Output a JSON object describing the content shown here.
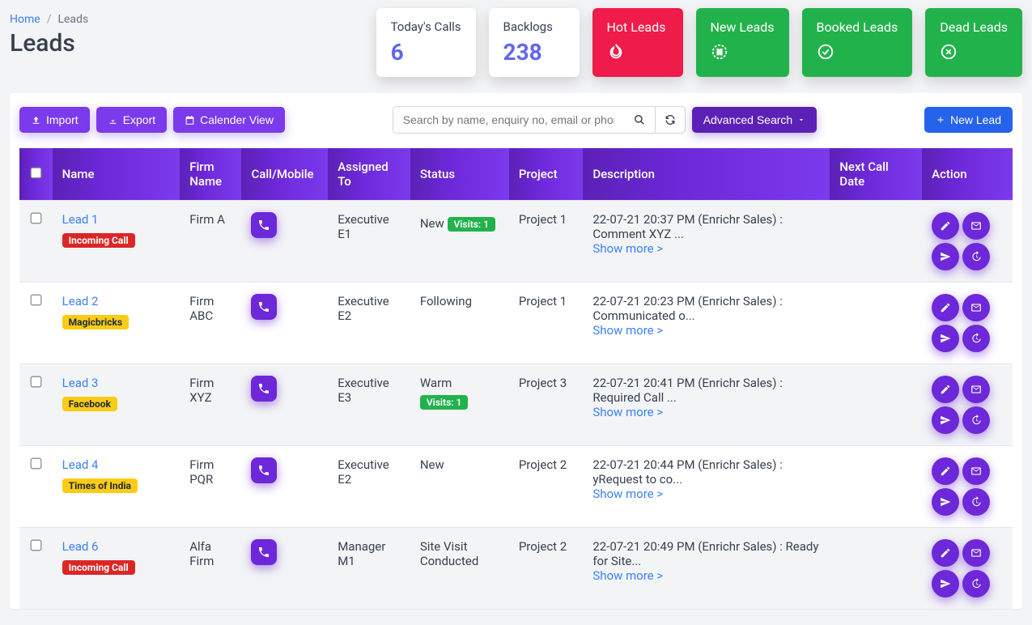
{
  "breadcrumb": {
    "home": "Home",
    "current": "Leads"
  },
  "page_title": "Leads",
  "stats": {
    "todays_calls": {
      "label": "Today's Calls",
      "value": "6"
    },
    "backlogs": {
      "label": "Backlogs",
      "value": "238"
    },
    "hot": {
      "label": "Hot Leads",
      "color": "#ef1b4a",
      "icon": "flame"
    },
    "new": {
      "label": "New Leads",
      "color": "#22b24c",
      "icon": "badge-n"
    },
    "booked": {
      "label": "Booked Leads",
      "color": "#22b24c",
      "icon": "check-circle"
    },
    "dead": {
      "label": "Dead Leads",
      "color": "#22b24c",
      "icon": "x-circle"
    }
  },
  "toolbar": {
    "import": "Import",
    "export": "Export",
    "calendar": "Calender View",
    "search_placeholder": "Search by name, enquiry no, email or phone",
    "advanced_search": "Advanced Search",
    "new_lead": "New Lead"
  },
  "columns": {
    "name": "Name",
    "firm": "Firm Name",
    "call": "Call/Mobile",
    "assigned": "Assigned To",
    "status": "Status",
    "project": "Project",
    "description": "Description",
    "next_call": "Next Call Date",
    "action": "Action"
  },
  "show_more_label": "Show more >",
  "visits_prefix": "Visits: ",
  "rows": [
    {
      "name": "Lead 1",
      "tag": "Incoming Call",
      "tag_color": "red",
      "firm": "Firm A",
      "assigned": "Executive E1",
      "status": "New",
      "visits": "1",
      "project": "Project 1",
      "description": "22-07-21 20:37 PM (Enrichr Sales) : Comment XYZ ...",
      "next_call": ""
    },
    {
      "name": "Lead 2",
      "tag": "Magicbricks",
      "tag_color": "yellow",
      "firm": "Firm ABC",
      "assigned": "Executive E2",
      "status": "Following",
      "visits": "",
      "project": "Project 1",
      "description": "22-07-21 20:23 PM (Enrichr Sales) : Communicated o...",
      "next_call": ""
    },
    {
      "name": "Lead 3",
      "tag": "Facebook",
      "tag_color": "yellow",
      "firm": "Firm XYZ",
      "assigned": "Executive E3",
      "status": "Warm",
      "visits": "1",
      "project": "Project 3",
      "description": "22-07-21 20:41 PM (Enrichr Sales) : Required Call ...",
      "next_call": ""
    },
    {
      "name": "Lead 4",
      "tag": "Times of India",
      "tag_color": "yellow",
      "firm": "Firm PQR",
      "assigned": "Executive E2",
      "status": "New",
      "visits": "",
      "project": "Project 2",
      "description": "22-07-21 20:44 PM (Enrichr Sales) : yRequest to co...",
      "next_call": ""
    },
    {
      "name": "Lead 6",
      "tag": "Incoming Call",
      "tag_color": "red",
      "firm": "Alfa Firm",
      "assigned": "Manager M1",
      "status": "Site Visit Conducted",
      "visits": "",
      "project": "Project 2",
      "description": "22-07-21 20:49 PM (Enrichr Sales) : Ready for Site...",
      "next_call": ""
    }
  ]
}
